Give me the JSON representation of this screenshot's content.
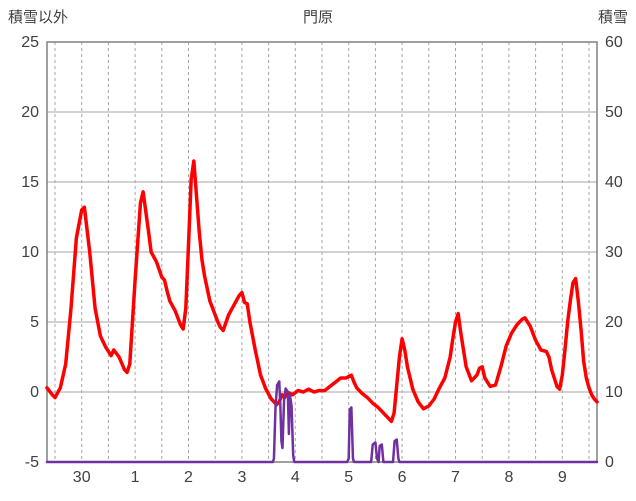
{
  "header": {
    "left_axis_title": "積雪以外",
    "title": "門原",
    "right_axis_title": "積雪"
  },
  "chart_data": {
    "type": "line",
    "title": "門原",
    "left_axis": {
      "label": "積雪以外",
      "min": -5,
      "max": 25,
      "ticks": [
        25,
        20,
        15,
        10,
        5,
        0,
        -5
      ]
    },
    "right_axis": {
      "label": "積雪",
      "min": 0,
      "max": 60,
      "ticks": [
        60,
        50,
        40,
        30,
        20,
        10,
        0
      ]
    },
    "x_axis": {
      "min": -0.65,
      "max": 9.65,
      "grid_step": 0.5,
      "tick_positions": [
        0,
        1,
        2,
        3,
        4,
        5,
        6,
        7,
        8,
        9
      ],
      "tick_labels": [
        "30",
        "1",
        "2",
        "3",
        "4",
        "5",
        "6",
        "7",
        "8",
        "9"
      ]
    },
    "grid_color": "#a6a6a6",
    "border_color": "#808080",
    "text_color": "#404040",
    "series": [
      {
        "axis": "left",
        "color": "#ff0000",
        "width": 3.5,
        "points": [
          [
            -0.65,
            0.3
          ],
          [
            -0.55,
            -0.2
          ],
          [
            -0.5,
            -0.4
          ],
          [
            -0.4,
            0.3
          ],
          [
            -0.3,
            2.0
          ],
          [
            -0.2,
            6.0
          ],
          [
            -0.1,
            11.0
          ],
          [
            0.0,
            13.0
          ],
          [
            0.05,
            13.2
          ],
          [
            0.15,
            10.0
          ],
          [
            0.25,
            6.0
          ],
          [
            0.35,
            4.0
          ],
          [
            0.45,
            3.2
          ],
          [
            0.55,
            2.6
          ],
          [
            0.6,
            3.0
          ],
          [
            0.7,
            2.5
          ],
          [
            0.8,
            1.6
          ],
          [
            0.85,
            1.4
          ],
          [
            0.9,
            2.0
          ],
          [
            1.0,
            8.0
          ],
          [
            1.1,
            13.5
          ],
          [
            1.15,
            14.3
          ],
          [
            1.25,
            11.5
          ],
          [
            1.3,
            10.0
          ],
          [
            1.4,
            9.3
          ],
          [
            1.5,
            8.2
          ],
          [
            1.55,
            8.0
          ],
          [
            1.6,
            7.2
          ],
          [
            1.65,
            6.5
          ],
          [
            1.75,
            5.8
          ],
          [
            1.85,
            4.8
          ],
          [
            1.9,
            4.5
          ],
          [
            1.95,
            6.0
          ],
          [
            2.0,
            10.5
          ],
          [
            2.05,
            15.2
          ],
          [
            2.1,
            16.5
          ],
          [
            2.15,
            14.0
          ],
          [
            2.2,
            11.5
          ],
          [
            2.25,
            9.5
          ],
          [
            2.3,
            8.3
          ],
          [
            2.4,
            6.5
          ],
          [
            2.5,
            5.5
          ],
          [
            2.55,
            5.0
          ],
          [
            2.6,
            4.6
          ],
          [
            2.65,
            4.4
          ],
          [
            2.75,
            5.5
          ],
          [
            2.85,
            6.2
          ],
          [
            2.95,
            6.9
          ],
          [
            3.0,
            7.1
          ],
          [
            3.05,
            6.4
          ],
          [
            3.1,
            6.3
          ],
          [
            3.15,
            5.0
          ],
          [
            3.25,
            3.0
          ],
          [
            3.35,
            1.2
          ],
          [
            3.45,
            0.2
          ],
          [
            3.55,
            -0.5
          ],
          [
            3.65,
            -0.9
          ],
          [
            3.7,
            -0.7
          ],
          [
            3.75,
            -0.2
          ],
          [
            3.8,
            -0.4
          ],
          [
            3.85,
            0.0
          ],
          [
            3.95,
            -0.2
          ],
          [
            4.05,
            0.1
          ],
          [
            4.15,
            0.0
          ],
          [
            4.25,
            0.2
          ],
          [
            4.35,
            0.0
          ],
          [
            4.45,
            0.1
          ],
          [
            4.55,
            0.1
          ],
          [
            4.65,
            0.4
          ],
          [
            4.75,
            0.7
          ],
          [
            4.85,
            1.0
          ],
          [
            4.95,
            1.0
          ],
          [
            5.0,
            1.1
          ],
          [
            5.05,
            1.2
          ],
          [
            5.1,
            0.7
          ],
          [
            5.15,
            0.3
          ],
          [
            5.25,
            -0.1
          ],
          [
            5.35,
            -0.4
          ],
          [
            5.45,
            -0.8
          ],
          [
            5.55,
            -1.1
          ],
          [
            5.65,
            -1.5
          ],
          [
            5.75,
            -1.9
          ],
          [
            5.8,
            -2.1
          ],
          [
            5.85,
            -1.5
          ],
          [
            5.9,
            0.5
          ],
          [
            5.95,
            2.5
          ],
          [
            6.0,
            3.8
          ],
          [
            6.05,
            3.0
          ],
          [
            6.1,
            1.8
          ],
          [
            6.2,
            0.2
          ],
          [
            6.3,
            -0.7
          ],
          [
            6.4,
            -1.2
          ],
          [
            6.5,
            -1.0
          ],
          [
            6.6,
            -0.5
          ],
          [
            6.7,
            0.3
          ],
          [
            6.8,
            1.0
          ],
          [
            6.9,
            2.5
          ],
          [
            6.95,
            3.8
          ],
          [
            7.0,
            5.0
          ],
          [
            7.05,
            5.6
          ],
          [
            7.1,
            4.2
          ],
          [
            7.15,
            3.0
          ],
          [
            7.2,
            1.8
          ],
          [
            7.3,
            0.8
          ],
          [
            7.4,
            1.2
          ],
          [
            7.45,
            1.7
          ],
          [
            7.5,
            1.8
          ],
          [
            7.55,
            1.0
          ],
          [
            7.65,
            0.4
          ],
          [
            7.75,
            0.5
          ],
          [
            7.85,
            1.8
          ],
          [
            7.95,
            3.3
          ],
          [
            8.05,
            4.2
          ],
          [
            8.15,
            4.8
          ],
          [
            8.25,
            5.2
          ],
          [
            8.3,
            5.3
          ],
          [
            8.4,
            4.7
          ],
          [
            8.5,
            3.7
          ],
          [
            8.6,
            3.0
          ],
          [
            8.7,
            2.9
          ],
          [
            8.75,
            2.5
          ],
          [
            8.8,
            1.6
          ],
          [
            8.9,
            0.4
          ],
          [
            8.95,
            0.2
          ],
          [
            9.0,
            1.2
          ],
          [
            9.05,
            3.0
          ],
          [
            9.1,
            5.0
          ],
          [
            9.15,
            6.5
          ],
          [
            9.2,
            7.8
          ],
          [
            9.25,
            8.1
          ],
          [
            9.3,
            6.5
          ],
          [
            9.35,
            4.5
          ],
          [
            9.4,
            2.2
          ],
          [
            9.45,
            1.0
          ],
          [
            9.5,
            0.3
          ],
          [
            9.55,
            -0.2
          ],
          [
            9.6,
            -0.5
          ],
          [
            9.65,
            -0.7
          ]
        ]
      },
      {
        "axis": "right",
        "color": "#7030a0",
        "width": 2.5,
        "points": [
          [
            -0.65,
            0
          ],
          [
            3.58,
            0
          ],
          [
            3.6,
            0.5
          ],
          [
            3.63,
            8
          ],
          [
            3.66,
            11
          ],
          [
            3.7,
            11.5
          ],
          [
            3.72,
            8
          ],
          [
            3.74,
            3
          ],
          [
            3.76,
            2
          ],
          [
            3.79,
            9
          ],
          [
            3.82,
            10.5
          ],
          [
            3.86,
            10
          ],
          [
            3.88,
            4
          ],
          [
            3.9,
            9.5
          ],
          [
            3.93,
            8
          ],
          [
            3.96,
            1
          ],
          [
            3.98,
            0
          ],
          [
            4.97,
            0
          ],
          [
            5.0,
            0.5
          ],
          [
            5.02,
            7.5
          ],
          [
            5.05,
            7.8
          ],
          [
            5.08,
            0.5
          ],
          [
            5.1,
            0
          ],
          [
            5.42,
            0
          ],
          [
            5.45,
            2.5
          ],
          [
            5.5,
            2.8
          ],
          [
            5.53,
            0.5
          ],
          [
            5.56,
            0
          ],
          [
            5.58,
            2.3
          ],
          [
            5.62,
            2.5
          ],
          [
            5.65,
            0
          ],
          [
            5.83,
            0
          ],
          [
            5.86,
            3.0
          ],
          [
            5.9,
            3.2
          ],
          [
            5.93,
            0.5
          ],
          [
            5.95,
            0
          ],
          [
            9.65,
            0
          ]
        ]
      }
    ]
  }
}
